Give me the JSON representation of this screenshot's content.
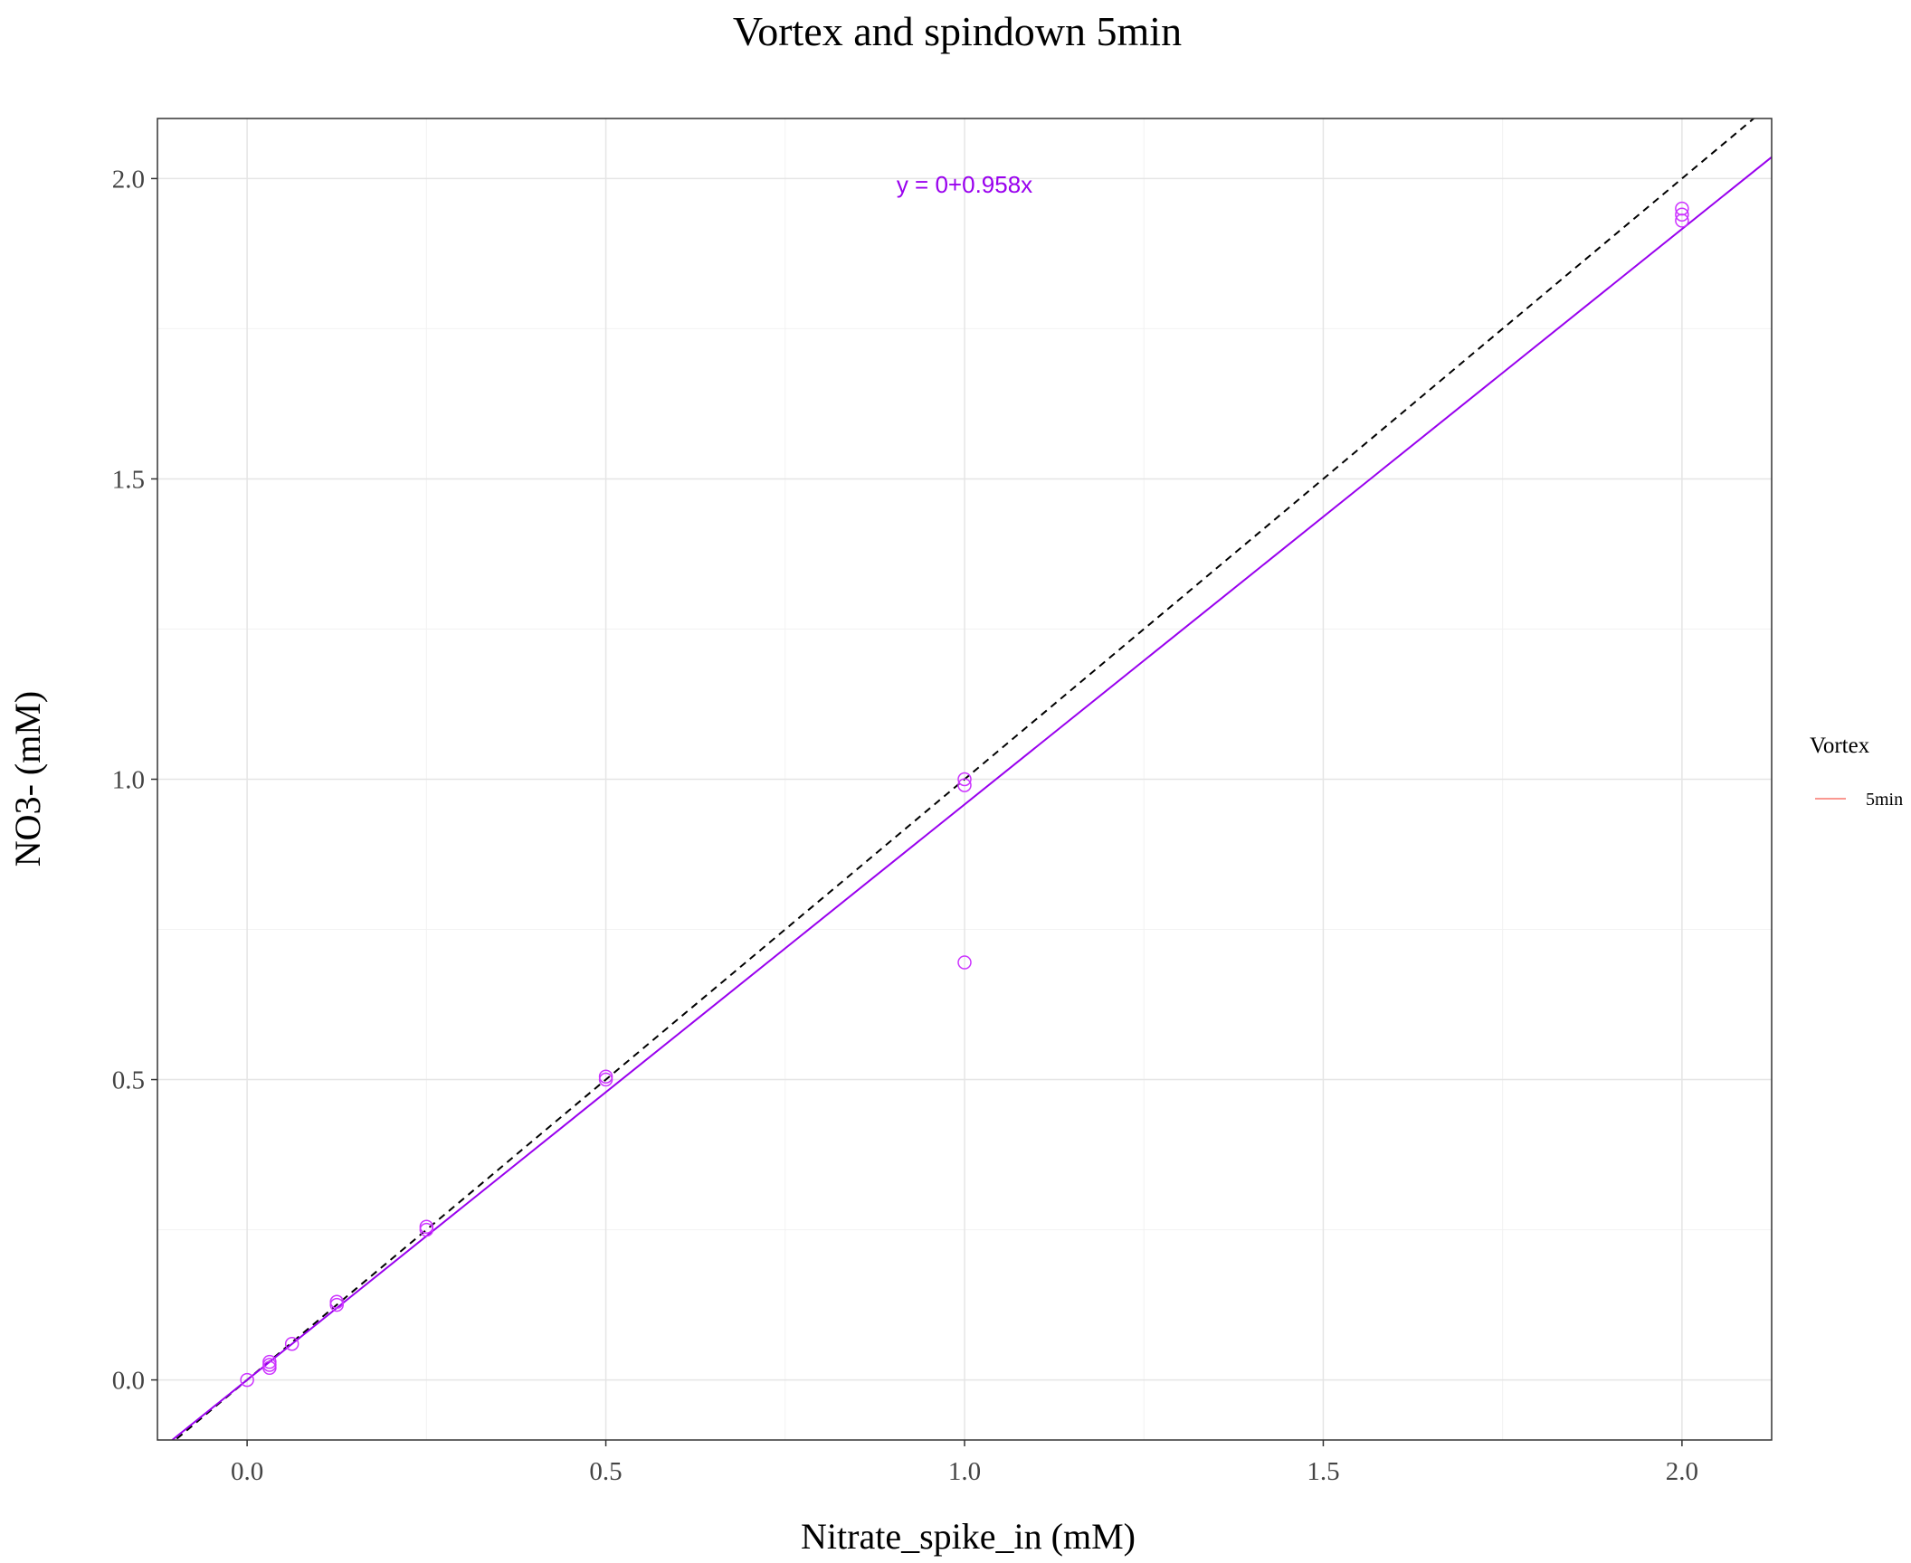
{
  "chart_data": {
    "type": "scatter",
    "title": "Vortex and spindown 5min",
    "xlabel": "Nitrate_spike_in (mM)",
    "ylabel": "NO3- (mM)",
    "xlim": [
      -0.125,
      2.125
    ],
    "ylim": [
      -0.1,
      2.1
    ],
    "x_ticks": [
      0.0,
      0.5,
      1.0,
      1.5,
      2.0
    ],
    "x_tick_labels": [
      "0.0",
      "0.5",
      "1.0",
      "1.5",
      "2.0"
    ],
    "y_ticks": [
      0.0,
      0.5,
      1.0,
      1.5,
      2.0
    ],
    "y_tick_labels": [
      "0.0",
      "0.5",
      "1.0",
      "1.5",
      "2.0"
    ],
    "grid": true,
    "points": [
      {
        "x": 0.0,
        "y": 0.0
      },
      {
        "x": 0.03125,
        "y": 0.02
      },
      {
        "x": 0.03125,
        "y": 0.025
      },
      {
        "x": 0.03125,
        "y": 0.03
      },
      {
        "x": 0.0625,
        "y": 0.06
      },
      {
        "x": 0.125,
        "y": 0.125
      },
      {
        "x": 0.125,
        "y": 0.13
      },
      {
        "x": 0.25,
        "y": 0.25
      },
      {
        "x": 0.25,
        "y": 0.255
      },
      {
        "x": 0.5,
        "y": 0.5
      },
      {
        "x": 0.5,
        "y": 0.505
      },
      {
        "x": 1.0,
        "y": 0.99
      },
      {
        "x": 1.0,
        "y": 1.0
      },
      {
        "x": 1.0,
        "y": 0.695
      },
      {
        "x": 2.0,
        "y": 1.93
      },
      {
        "x": 2.0,
        "y": 1.94
      },
      {
        "x": 2.0,
        "y": 1.95
      }
    ],
    "point_color": "#cc33ff",
    "fit_line": {
      "intercept": 0,
      "slope": 0.958,
      "color": "#9900ee"
    },
    "reference_line": {
      "intercept": 0,
      "slope": 1,
      "color": "#000000",
      "style": "dashed"
    },
    "annotation": {
      "text": "y = 0+0.958x",
      "x": 1.0,
      "y": 1.99,
      "color": "#9900ee"
    },
    "legend": {
      "title": "Vortex",
      "placement": "right",
      "entries": [
        {
          "name": "5min",
          "color": "#f8766d"
        }
      ]
    }
  }
}
